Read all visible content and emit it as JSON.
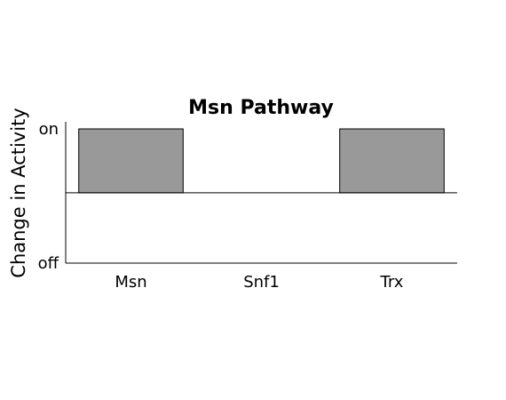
{
  "chart_data": {
    "type": "bar",
    "title": "Msn Pathway",
    "xlabel": "",
    "ylabel": "Change in Activity",
    "categories": [
      "Msn",
      "Snf1",
      "Trx"
    ],
    "values": [
      1,
      0,
      1
    ],
    "ylim": [
      -1.1,
      1
    ],
    "yticks": [
      {
        "value": 1,
        "label": "on"
      },
      {
        "value": -1.1,
        "label": "off"
      }
    ],
    "baseline": 0,
    "bar_color": "#999999",
    "bar_edge_color": "#000000",
    "grid": false
  }
}
